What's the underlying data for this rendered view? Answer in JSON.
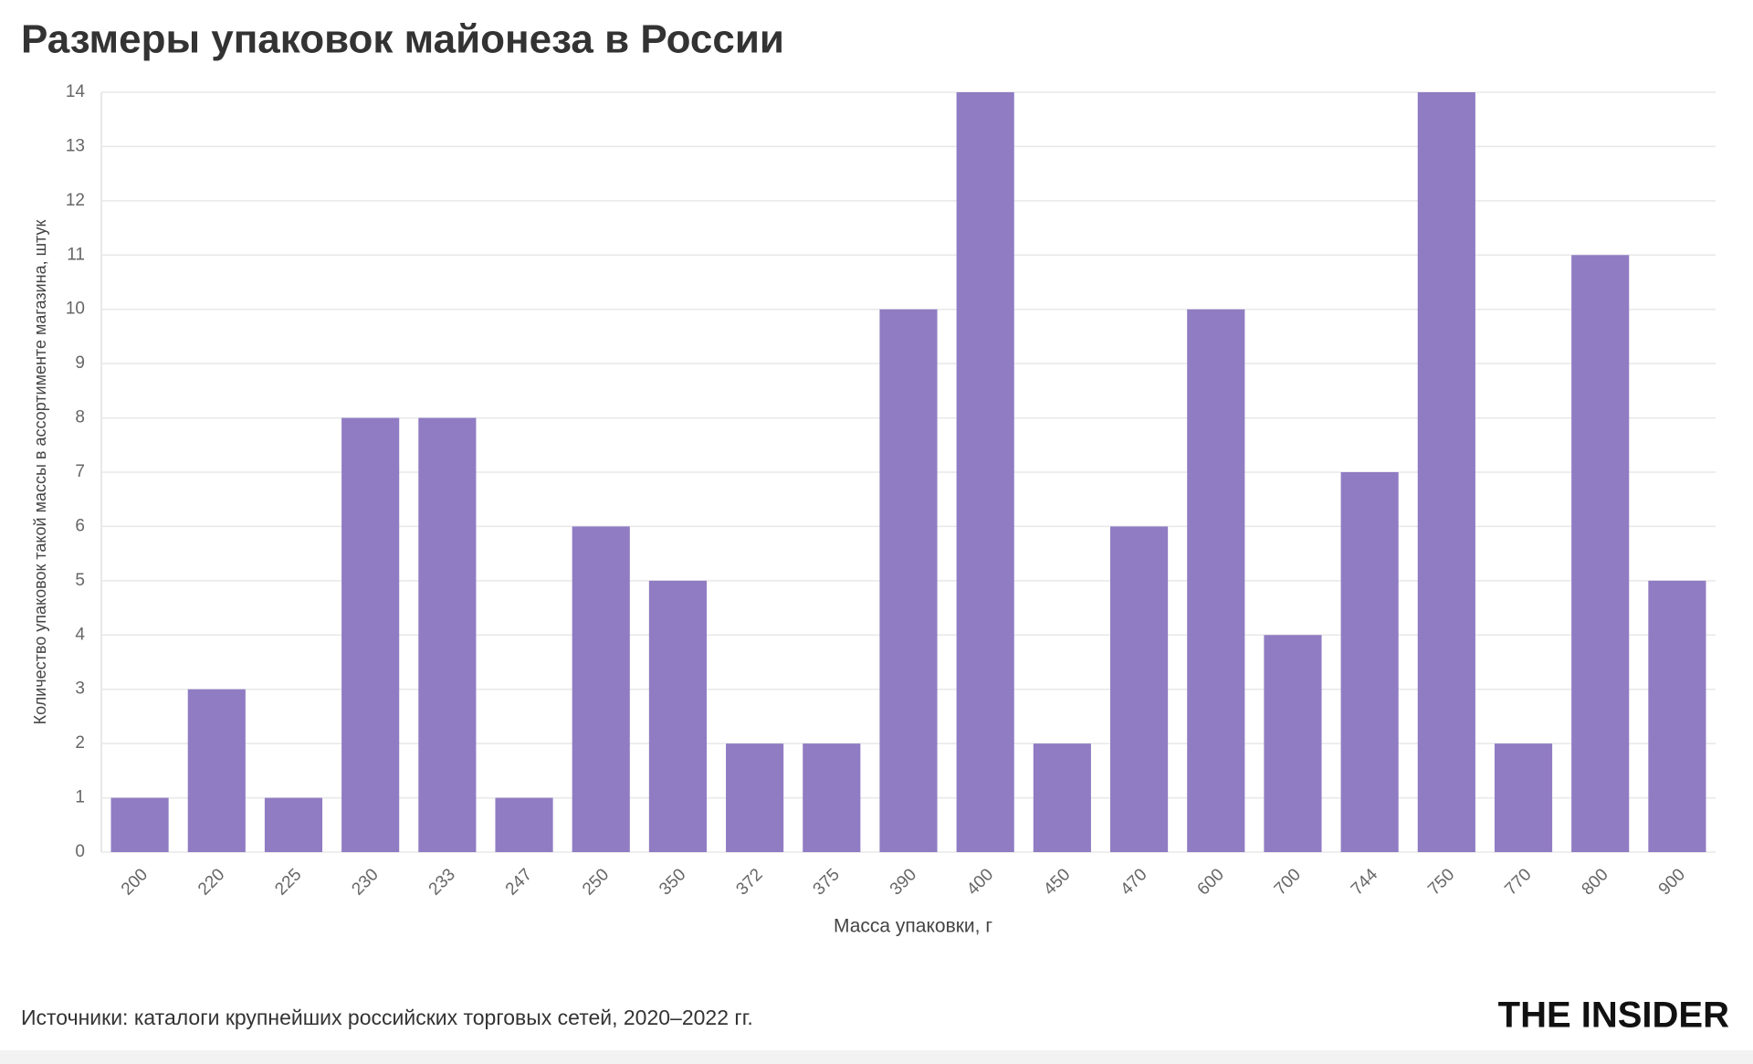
{
  "chart_data": {
    "type": "bar",
    "title": "Размеры упаковок майонеза в России",
    "x_label": "Масса упаковки, г",
    "y_label": "Количество упаковок такой массы в ассортименте магазина, штук",
    "categories": [
      "200",
      "220",
      "225",
      "230",
      "233",
      "247",
      "250",
      "350",
      "372",
      "375",
      "390",
      "400",
      "450",
      "470",
      "600",
      "700",
      "744",
      "750",
      "770",
      "800",
      "900"
    ],
    "values": [
      1,
      3,
      1,
      8,
      8,
      1,
      6,
      5,
      2,
      2,
      10,
      14,
      2,
      6,
      10,
      4,
      7,
      14,
      2,
      11,
      5
    ],
    "color": "#8e79c2",
    "ylim": [
      0,
      14
    ],
    "yticks": [
      0,
      1,
      2,
      3,
      4,
      5,
      6,
      7,
      8,
      9,
      10,
      11,
      12,
      13,
      14
    ],
    "grid": true
  },
  "source": "Источники: каталоги крупнейших российских торговых сетей, 2020–2022 гг.",
  "logo": "THE INSIDER"
}
